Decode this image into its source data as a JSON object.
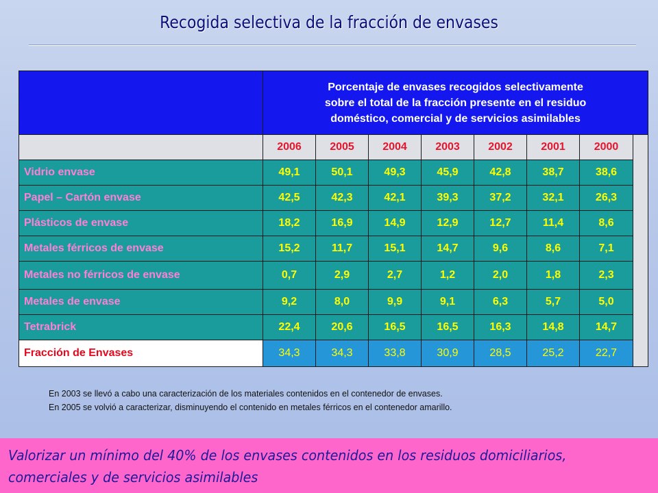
{
  "title": "Recogida selectiva de la fracción de envases",
  "table": {
    "header_line1": "Porcentaje de envases recogidos selectivamente",
    "header_line2": "sobre el total de la fracción presente en el residuo",
    "header_line3": "doméstico, comercial y de servicios asimilables",
    "years": [
      "2006",
      "2005",
      "2004",
      "2003",
      "2002",
      "2001",
      "2000"
    ],
    "rows": [
      {
        "label": "Vidrio envase",
        "values": [
          "49,1",
          "50,1",
          "49,3",
          "45,9",
          "42,8",
          "38,7",
          "38,6"
        ]
      },
      {
        "label": "Papel – Cartón envase",
        "values": [
          "42,5",
          "42,3",
          "42,1",
          "39,3",
          "37,2",
          "32,1",
          "26,3"
        ]
      },
      {
        "label": "Plásticos de envase",
        "values": [
          "18,2",
          "16,9",
          "14,9",
          "12,9",
          "12,7",
          "11,4",
          "8,6"
        ]
      },
      {
        "label": "Metales férricos de envase",
        "values": [
          "15,2",
          "11,7",
          "15,1",
          "14,7",
          "9,6",
          "8,6",
          "7,1"
        ]
      },
      {
        "label": "Metales no férricos de envase",
        "values": [
          "0,7",
          "2,9",
          "2,7",
          "1,2",
          "2,0",
          "1,8",
          "2,3"
        ]
      },
      {
        "label": "Metales de envase",
        "values": [
          "9,2",
          "8,0",
          "9,9",
          "9,1",
          "6,3",
          "5,7",
          "5,0"
        ]
      },
      {
        "label": "Tetrabrick",
        "values": [
          "22,4",
          "20,6",
          "16,5",
          "16,5",
          "16,3",
          "14,8",
          "14,7"
        ]
      },
      {
        "label": "Fracción de Envases",
        "values": [
          "34,3",
          "34,3",
          "33,8",
          "30,9",
          "28,5",
          "25,2",
          "22,7"
        ]
      }
    ]
  },
  "notes": [
    "En 2003 se llevó a cabo una caracterización de los materiales contenidos en el contenedor de envases.",
    "En 2005 se volvió a caracterizar, disminuyendo el contenido en metales férricos en el contenedor amarillo."
  ],
  "banner": {
    "line1": "Valorizar un mínimo del 40% de los envases contenidos en los residuos domiciliarios,",
    "line2": "comerciales y de servicios asimilables"
  },
  "colors": {
    "header_blue": "#1418ee",
    "row_teal": "#1a9c9c",
    "value_yellow": "#ffff00",
    "label_pink": "#ff7fd6",
    "year_red": "#e5162c",
    "banner_pink": "#ff66cc"
  }
}
